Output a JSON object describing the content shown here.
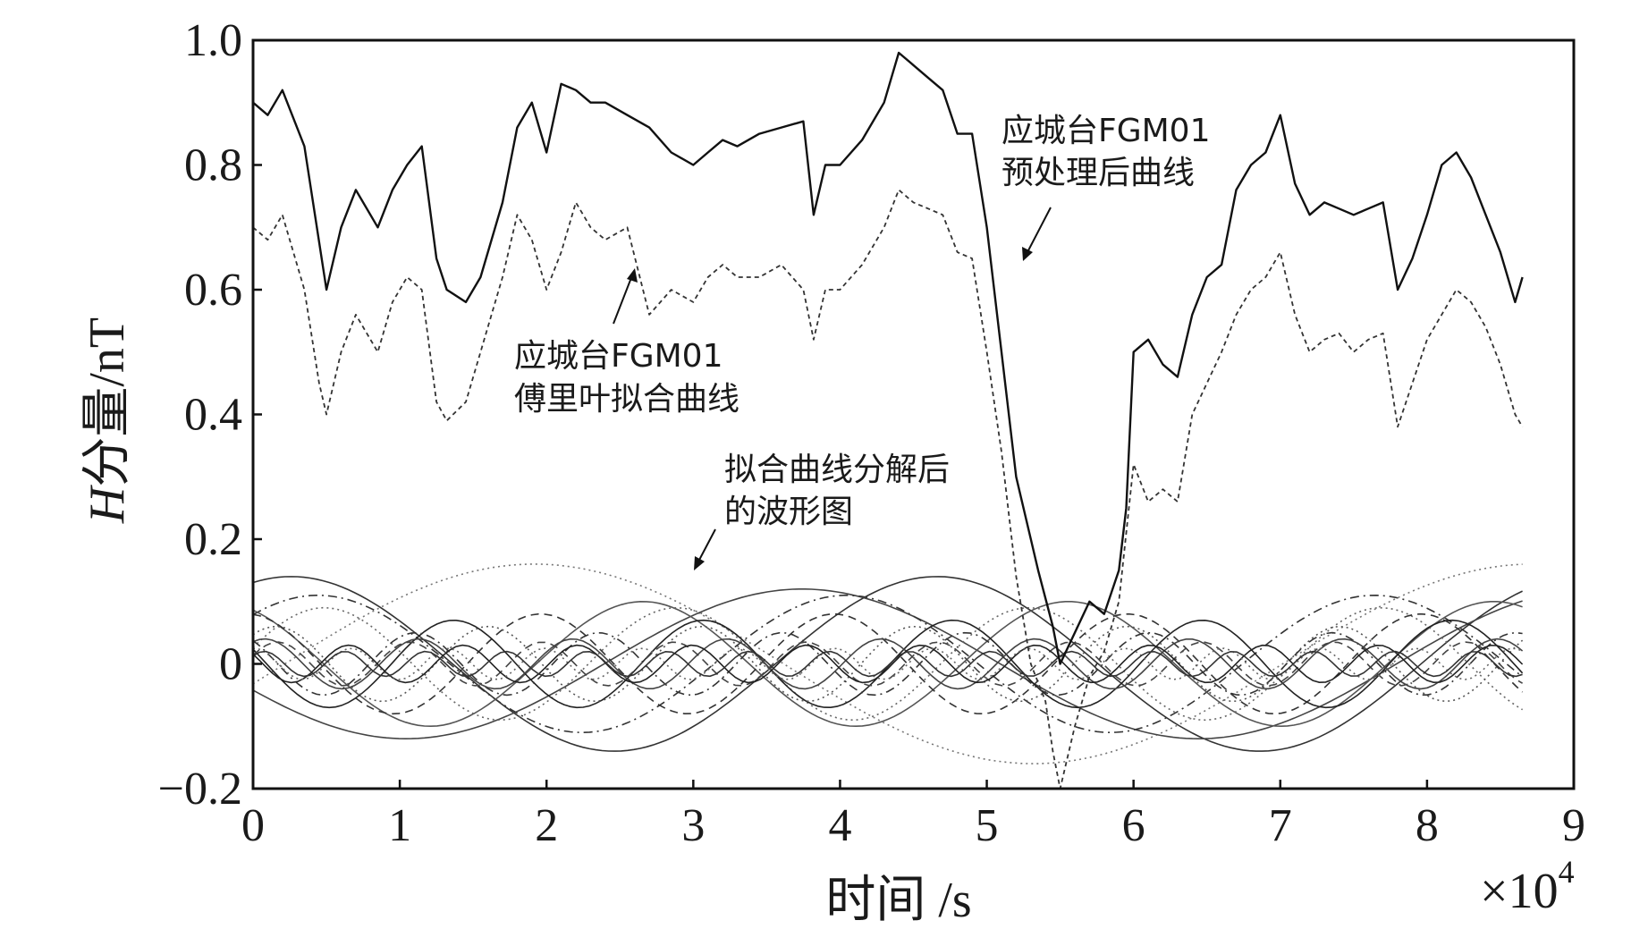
{
  "chart_data": {
    "type": "line",
    "xlabel": "时间 /s",
    "ylabel_italic": "H",
    "ylabel_rest": "分量/nT",
    "x_multiplier": "×10",
    "x_multiplier_exp": "4",
    "xlim": [
      0,
      9
    ],
    "ylim": [
      -0.2,
      1.0
    ],
    "x_ticks": [
      0,
      1,
      2,
      3,
      4,
      5,
      6,
      7,
      8,
      9
    ],
    "x_tick_labels": [
      "0",
      "1",
      "2",
      "3",
      "4",
      "5",
      "6",
      "7",
      "8",
      "9"
    ],
    "y_ticks": [
      -0.2,
      0,
      0.2,
      0.4,
      0.6,
      0.8,
      1.0
    ],
    "y_tick_labels": [
      "−0.2",
      "0",
      "0.2",
      "0.4",
      "0.6",
      "0.8",
      "1.0"
    ],
    "grid": false,
    "series": [
      {
        "style": "solid",
        "color": "#111111",
        "x": [
          0,
          0.1,
          0.2,
          0.35,
          0.5,
          0.6,
          0.7,
          0.85,
          0.95,
          1.05,
          1.15,
          1.25,
          1.32,
          1.45,
          1.55,
          1.7,
          1.8,
          1.9,
          2.0,
          2.1,
          2.2,
          2.3,
          2.4,
          2.55,
          2.7,
          2.85,
          3.0,
          3.1,
          3.2,
          3.3,
          3.45,
          3.6,
          3.75,
          3.82,
          3.9,
          4.0,
          4.15,
          4.3,
          4.4,
          4.5,
          4.6,
          4.7,
          4.8,
          4.9,
          5.0,
          5.1,
          5.2,
          5.3,
          5.35,
          5.45,
          5.5,
          5.6,
          5.7,
          5.8,
          5.9,
          5.95,
          6.0,
          6.1,
          6.2,
          6.3,
          6.4,
          6.5,
          6.6,
          6.7,
          6.8,
          6.9,
          7.0,
          7.1,
          7.2,
          7.3,
          7.4,
          7.5,
          7.6,
          7.7,
          7.8,
          7.9,
          8.0,
          8.1,
          8.2,
          8.3,
          8.4,
          8.5,
          8.6,
          8.65
        ],
        "y": [
          0.9,
          0.88,
          0.92,
          0.83,
          0.6,
          0.7,
          0.76,
          0.7,
          0.76,
          0.8,
          0.83,
          0.65,
          0.6,
          0.58,
          0.62,
          0.74,
          0.86,
          0.9,
          0.82,
          0.93,
          0.92,
          0.9,
          0.9,
          0.88,
          0.86,
          0.82,
          0.8,
          0.82,
          0.84,
          0.83,
          0.85,
          0.86,
          0.87,
          0.72,
          0.8,
          0.8,
          0.84,
          0.9,
          0.98,
          0.96,
          0.94,
          0.92,
          0.85,
          0.85,
          0.7,
          0.5,
          0.3,
          0.2,
          0.15,
          0.06,
          0.0,
          0.05,
          0.1,
          0.08,
          0.15,
          0.25,
          0.5,
          0.52,
          0.48,
          0.46,
          0.56,
          0.62,
          0.64,
          0.76,
          0.8,
          0.82,
          0.88,
          0.77,
          0.72,
          0.74,
          0.73,
          0.72,
          0.73,
          0.74,
          0.6,
          0.65,
          0.72,
          0.8,
          0.82,
          0.78,
          0.72,
          0.66,
          0.58,
          0.62
        ]
      },
      {
        "style": "dashed",
        "color": "#333333",
        "x": [
          0,
          0.1,
          0.2,
          0.35,
          0.45,
          0.5,
          0.6,
          0.7,
          0.85,
          0.95,
          1.05,
          1.15,
          1.25,
          1.32,
          1.45,
          1.55,
          1.7,
          1.8,
          1.9,
          2.0,
          2.1,
          2.2,
          2.3,
          2.4,
          2.55,
          2.7,
          2.85,
          3.0,
          3.1,
          3.2,
          3.3,
          3.45,
          3.6,
          3.75,
          3.82,
          3.9,
          4.0,
          4.15,
          4.3,
          4.4,
          4.5,
          4.6,
          4.7,
          4.8,
          4.9,
          5.0,
          5.1,
          5.2,
          5.3,
          5.4,
          5.45,
          5.5,
          5.6,
          5.7,
          5.8,
          5.9,
          6.0,
          6.1,
          6.2,
          6.3,
          6.4,
          6.5,
          6.6,
          6.7,
          6.8,
          6.9,
          7.0,
          7.1,
          7.2,
          7.3,
          7.4,
          7.5,
          7.6,
          7.7,
          7.8,
          7.9,
          8.0,
          8.1,
          8.2,
          8.3,
          8.4,
          8.5,
          8.6,
          8.65
        ],
        "y": [
          0.7,
          0.68,
          0.72,
          0.6,
          0.45,
          0.4,
          0.5,
          0.56,
          0.5,
          0.58,
          0.62,
          0.6,
          0.42,
          0.39,
          0.42,
          0.5,
          0.62,
          0.72,
          0.68,
          0.6,
          0.66,
          0.74,
          0.7,
          0.68,
          0.7,
          0.56,
          0.6,
          0.58,
          0.62,
          0.64,
          0.62,
          0.62,
          0.64,
          0.6,
          0.52,
          0.6,
          0.6,
          0.64,
          0.7,
          0.76,
          0.74,
          0.73,
          0.72,
          0.66,
          0.65,
          0.5,
          0.34,
          0.14,
          0.0,
          -0.06,
          -0.14,
          -0.2,
          -0.1,
          -0.02,
          0.02,
          0.1,
          0.32,
          0.26,
          0.28,
          0.26,
          0.4,
          0.45,
          0.5,
          0.56,
          0.6,
          0.62,
          0.66,
          0.56,
          0.5,
          0.52,
          0.53,
          0.5,
          0.52,
          0.53,
          0.38,
          0.45,
          0.52,
          0.56,
          0.6,
          0.58,
          0.54,
          0.48,
          0.4,
          0.38
        ]
      }
    ],
    "decomposed_waveforms": [
      {
        "amp": 0.16,
        "period": 6.8,
        "phase": -0.2,
        "offset": 0.0,
        "style": "dotted",
        "color": "#777777"
      },
      {
        "amp": 0.14,
        "period": 4.4,
        "phase": 1.2,
        "offset": 0.0,
        "style": "solid",
        "color": "#333333"
      },
      {
        "amp": 0.12,
        "period": 5.4,
        "phase": 3.5,
        "offset": 0.0,
        "style": "solid",
        "color": "#444444"
      },
      {
        "amp": 0.11,
        "period": 3.6,
        "phase": 0.8,
        "offset": 0.0,
        "style": "dashdot",
        "color": "#333333"
      },
      {
        "amp": 0.1,
        "period": 2.9,
        "phase": 2.1,
        "offset": 0.0,
        "style": "solid",
        "color": "#555555"
      },
      {
        "amp": 0.09,
        "period": 2.4,
        "phase": 0.3,
        "offset": 0.0,
        "style": "dotted",
        "color": "#666666"
      },
      {
        "amp": 0.08,
        "period": 2.0,
        "phase": 1.7,
        "offset": 0.0,
        "style": "dashed",
        "color": "#333333"
      },
      {
        "amp": 0.07,
        "period": 1.7,
        "phase": 2.8,
        "offset": 0.0,
        "style": "solid",
        "color": "#222222"
      },
      {
        "amp": 0.06,
        "period": 1.45,
        "phase": 0.9,
        "offset": 0.0,
        "style": "dotted",
        "color": "#555555"
      },
      {
        "amp": 0.05,
        "period": 1.25,
        "phase": 2.3,
        "offset": 0.0,
        "style": "dashdot",
        "color": "#333333"
      },
      {
        "amp": 0.04,
        "period": 1.05,
        "phase": 1.1,
        "offset": 0.0,
        "style": "solid",
        "color": "#444444"
      },
      {
        "amp": 0.035,
        "period": 0.9,
        "phase": 0.4,
        "offset": 0.0,
        "style": "dashed",
        "color": "#444444"
      },
      {
        "amp": 0.03,
        "period": 0.78,
        "phase": 2.6,
        "offset": 0.0,
        "style": "solid",
        "color": "#222222"
      },
      {
        "amp": 0.025,
        "period": 0.66,
        "phase": 1.5,
        "offset": 0.0,
        "style": "dotted",
        "color": "#666666"
      },
      {
        "amp": 0.02,
        "period": 0.55,
        "phase": 0.7,
        "offset": 0.0,
        "style": "solid",
        "color": "#333333"
      }
    ]
  },
  "annotations": [
    {
      "line1": "应城台FGM01",
      "line2": "预处理后曲线"
    },
    {
      "line1": "应城台FGM01",
      "line2": "傅里叶拟合曲线"
    },
    {
      "line1": "拟合曲线分解后",
      "line2": "的波形图"
    }
  ]
}
